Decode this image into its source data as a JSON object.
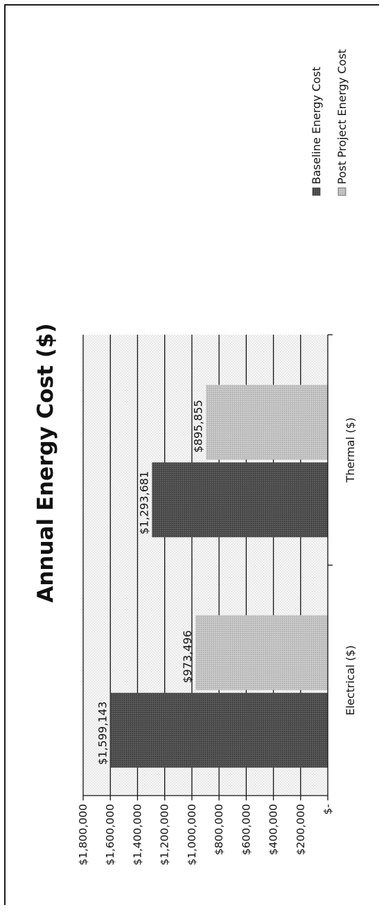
{
  "chart_data": {
    "type": "bar",
    "title": "Annual Energy Cost ($)",
    "categories": [
      "Electrical ($)",
      "Thermal ($)"
    ],
    "series": [
      {
        "name": "Baseline Energy Cost",
        "values": [
          1599143,
          1293681
        ],
        "labels": [
          "$1,599,143",
          "$1,293,681"
        ],
        "color": "#555555"
      },
      {
        "name": "Post Project Energy Cost",
        "values": [
          973496,
          895855
        ],
        "labels": [
          "$973,496",
          "$895,855"
        ],
        "color": "#bdbdbd"
      }
    ],
    "ylim": [
      0,
      1800000
    ],
    "y_tick_values": [
      0,
      200000,
      400000,
      600000,
      800000,
      1000000,
      1200000,
      1400000,
      1600000,
      1800000
    ],
    "y_tick_labels": [
      "$-",
      "$200,000",
      "$400,000",
      "$600,000",
      "$800,000",
      "$1,000,000",
      "$1,200,000",
      "$1,400,000",
      "$1,600,000",
      "$1,800,000"
    ],
    "grid": true,
    "legend_position": "right"
  }
}
